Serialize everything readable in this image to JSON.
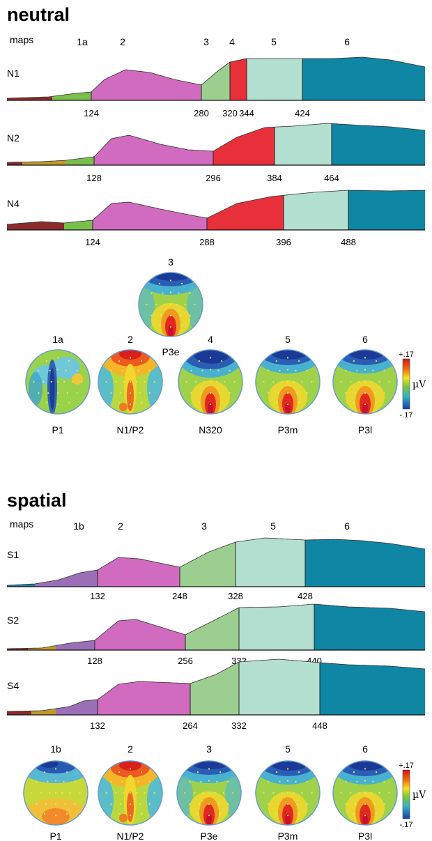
{
  "sections": [
    {
      "title": "neutral",
      "maps_label": "maps",
      "segment_headers": [
        "1a",
        "2",
        "3",
        "4",
        "5",
        "6"
      ],
      "rows": [
        {
          "label": "N1",
          "boundaries": [
            "124",
            "280",
            "320",
            "344",
            "424"
          ]
        },
        {
          "label": "N2",
          "boundaries": [
            "128",
            "296",
            "384",
            "464"
          ]
        },
        {
          "label": "N4",
          "boundaries": [
            "124",
            "288",
            "396",
            "488"
          ]
        }
      ],
      "topomaps": [
        {
          "number": "3",
          "component": "P3e",
          "pattern": "p3e"
        },
        {
          "number": "1a",
          "component": "P1",
          "pattern": "p1a"
        },
        {
          "number": "2",
          "component": "N1/P2",
          "pattern": "n1p2"
        },
        {
          "number": "4",
          "component": "N320",
          "pattern": "n320"
        },
        {
          "number": "5",
          "component": "P3m",
          "pattern": "p3m"
        },
        {
          "number": "6",
          "component": "P3l",
          "pattern": "p3l"
        }
      ],
      "colorbar": {
        "max": "+.17",
        "min": "-.17",
        "unit": "µV"
      }
    },
    {
      "title": "spatial",
      "maps_label": "maps",
      "segment_headers": [
        "1b",
        "2",
        "3",
        "5",
        "6"
      ],
      "rows": [
        {
          "label": "S1",
          "boundaries": [
            "132",
            "248",
            "328",
            "428"
          ]
        },
        {
          "label": "S2",
          "boundaries": [
            "128",
            "256",
            "332",
            "440"
          ]
        },
        {
          "label": "S4",
          "boundaries": [
            "132",
            "264",
            "332",
            "448"
          ]
        }
      ],
      "topomaps": [
        {
          "number": "1b",
          "component": "P1",
          "pattern": "p1b"
        },
        {
          "number": "2",
          "component": "N1/P2",
          "pattern": "n1p2"
        },
        {
          "number": "3",
          "component": "P3e",
          "pattern": "p3e"
        },
        {
          "number": "5",
          "component": "P3m",
          "pattern": "p3m"
        },
        {
          "number": "6",
          "component": "P3l",
          "pattern": "p3l"
        }
      ],
      "colorbar": {
        "max": "+.17",
        "min": "-.17",
        "unit": "µV"
      }
    }
  ],
  "colors": {
    "dark_red": "#8b2b2b",
    "olive": "#c39a2a",
    "green": "#79c04a",
    "purple": "#9b6fb8",
    "magenta": "#d16bc0",
    "light_green": "#9ccf8f",
    "red": "#e8303a",
    "pale_teal": "#b2dfd0",
    "teal": "#0f86a3",
    "dark_teal": "#137a92"
  }
}
